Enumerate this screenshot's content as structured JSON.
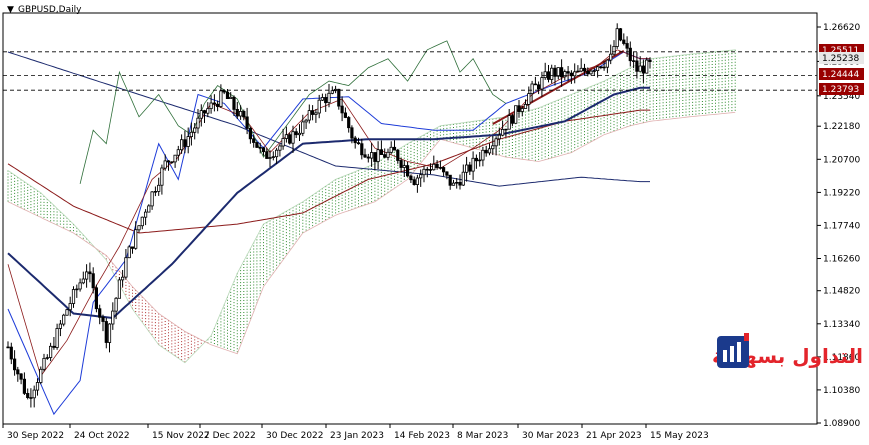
{
  "title": "GBPUSD,Daily",
  "colors": {
    "background": "#ffffff",
    "candle": "#000000",
    "ma_navy": "#1c2a6e",
    "ma_maroon": "#8b1a1a",
    "kijun_blue": "#1e3cd8",
    "chikou_green": "#2f6f3a",
    "cloud_green": "#2e8b2e",
    "cloud_red": "#b03030",
    "hline": "#000000",
    "label_bg": "#990000",
    "label_grey_bg": "#e8e8e8",
    "trendline": "#8b1a1a",
    "logo_red": "#e3242b",
    "logo_blue": "#1b3a8c"
  },
  "price_labels": [
    {
      "value": "1.25511",
      "style": "dark"
    },
    {
      "value": "1.25238",
      "style": "grey"
    },
    {
      "value": "1.24444",
      "style": "dark"
    },
    {
      "value": "1.23793",
      "style": "dark"
    }
  ],
  "logo": {
    "text": "التداول بسهولة",
    "icon": "bar-chart-logo-icon"
  },
  "chart_data": {
    "type": "candlestick",
    "symbol": "GBPUSD",
    "timeframe": "Daily",
    "x_ticks": [
      "30 Sep 2022",
      "24 Oct 2022",
      "15 Nov 2022",
      "7 Dec 2022",
      "30 Dec 2022",
      "23 Jan 2023",
      "14 Feb 2023",
      "8 Mar 2023",
      "30 Mar 2023",
      "21 Apr 2023",
      "15 May 2023"
    ],
    "y_ticks": [
      1.2662,
      1.2508,
      1.2354,
      1.2218,
      1.207,
      1.1922,
      1.1774,
      1.1626,
      1.1482,
      1.1334,
      1.1186,
      1.1038,
      1.089
    ],
    "y_tick_labels": [
      "1.26620",
      "1.25080",
      "1.23540",
      "1.22180",
      "1.20700",
      "1.19220",
      "1.17740",
      "1.16260",
      "1.14820",
      "1.13340",
      "1.11860",
      "1.10380",
      "1.08900"
    ],
    "ylim": [
      1.089,
      1.2662
    ],
    "hlines": [
      1.25511,
      1.24444,
      1.23793
    ],
    "close_anchors": [
      [
        0,
        1.123
      ],
      [
        6,
        1.1
      ],
      [
        12,
        1.118
      ],
      [
        18,
        1.14
      ],
      [
        24,
        1.158
      ],
      [
        30,
        1.128
      ],
      [
        36,
        1.162
      ],
      [
        42,
        1.185
      ],
      [
        48,
        1.205
      ],
      [
        54,
        1.215
      ],
      [
        60,
        1.228
      ],
      [
        66,
        1.236
      ],
      [
        72,
        1.224
      ],
      [
        78,
        1.208
      ],
      [
        84,
        1.214
      ],
      [
        90,
        1.222
      ],
      [
        96,
        1.234
      ],
      [
        100,
        1.236
      ],
      [
        106,
        1.214
      ],
      [
        112,
        1.208
      ],
      [
        118,
        1.21
      ],
      [
        124,
        1.198
      ],
      [
        130,
        1.205
      ],
      [
        136,
        1.195
      ],
      [
        142,
        1.205
      ],
      [
        148,
        1.216
      ],
      [
        154,
        1.226
      ],
      [
        160,
        1.238
      ],
      [
        166,
        1.246
      ],
      [
        172,
        1.244
      ],
      [
        178,
        1.248
      ],
      [
        184,
        1.252
      ],
      [
        186,
        1.263
      ],
      [
        188,
        1.258
      ],
      [
        190,
        1.252
      ],
      [
        192,
        1.247
      ],
      [
        196,
        1.249
      ]
    ],
    "ma_navy_anchors": [
      [
        0,
        1.165
      ],
      [
        20,
        1.138
      ],
      [
        32,
        1.136
      ],
      [
        50,
        1.16
      ],
      [
        70,
        1.192
      ],
      [
        90,
        1.214
      ],
      [
        110,
        1.216
      ],
      [
        130,
        1.216
      ],
      [
        150,
        1.218
      ],
      [
        170,
        1.224
      ],
      [
        185,
        1.236
      ],
      [
        193,
        1.239
      ]
    ],
    "ma_long_anchors": [
      [
        0,
        1.255
      ],
      [
        40,
        1.236
      ],
      [
        70,
        1.222
      ],
      [
        100,
        1.204
      ],
      [
        130,
        1.2
      ],
      [
        150,
        1.195
      ],
      [
        175,
        1.199
      ],
      [
        193,
        1.197
      ]
    ],
    "ma_maroon_anchors": [
      [
        0,
        1.205
      ],
      [
        20,
        1.186
      ],
      [
        40,
        1.174
      ],
      [
        70,
        1.178
      ],
      [
        90,
        1.183
      ],
      [
        110,
        1.198
      ],
      [
        130,
        1.205
      ],
      [
        150,
        1.216
      ],
      [
        170,
        1.224
      ],
      [
        193,
        1.229
      ]
    ],
    "kijun_anchors": [
      [
        0,
        1.14
      ],
      [
        14,
        1.093
      ],
      [
        22,
        1.108
      ],
      [
        26,
        1.143
      ],
      [
        36,
        1.162
      ],
      [
        46,
        1.214
      ],
      [
        52,
        1.198
      ],
      [
        58,
        1.236
      ],
      [
        66,
        1.232
      ],
      [
        78,
        1.212
      ],
      [
        90,
        1.234
      ],
      [
        104,
        1.235
      ],
      [
        114,
        1.223
      ],
      [
        130,
        1.22
      ],
      [
        142,
        1.22
      ],
      [
        152,
        1.232
      ],
      [
        166,
        1.24
      ],
      [
        178,
        1.246
      ],
      [
        188,
        1.255
      ],
      [
        193,
        1.252
      ]
    ],
    "tenkan_anchors": [
      [
        0,
        1.16
      ],
      [
        10,
        1.11
      ],
      [
        18,
        1.126
      ],
      [
        26,
        1.148
      ],
      [
        34,
        1.168
      ],
      [
        44,
        1.198
      ],
      [
        52,
        1.208
      ],
      [
        62,
        1.232
      ],
      [
        72,
        1.226
      ],
      [
        80,
        1.21
      ],
      [
        92,
        1.228
      ],
      [
        102,
        1.234
      ],
      [
        112,
        1.212
      ],
      [
        122,
        1.206
      ],
      [
        132,
        1.203
      ],
      [
        142,
        1.212
      ],
      [
        150,
        1.22
      ],
      [
        160,
        1.236
      ],
      [
        170,
        1.244
      ],
      [
        180,
        1.249
      ],
      [
        186,
        1.256
      ],
      [
        193,
        1.252
      ]
    ],
    "chikou_anchors": [
      [
        22,
        1.196
      ],
      [
        26,
        1.22
      ],
      [
        30,
        1.214
      ],
      [
        34,
        1.246
      ],
      [
        40,
        1.226
      ],
      [
        46,
        1.236
      ],
      [
        52,
        1.222
      ],
      [
        56,
        1.218
      ],
      [
        60,
        1.232
      ],
      [
        64,
        1.24
      ],
      [
        70,
        1.234
      ],
      [
        78,
        1.208
      ],
      [
        86,
        1.224
      ],
      [
        92,
        1.236
      ],
      [
        98,
        1.242
      ],
      [
        104,
        1.24
      ],
      [
        110,
        1.248
      ],
      [
        116,
        1.252
      ],
      [
        122,
        1.242
      ],
      [
        128,
        1.256
      ],
      [
        134,
        1.26
      ],
      [
        138,
        1.246
      ],
      [
        142,
        1.252
      ],
      [
        148,
        1.236
      ],
      [
        152,
        1.232
      ]
    ],
    "cloud_a_anchors": [
      [
        0,
        1.202
      ],
      [
        10,
        1.192
      ],
      [
        20,
        1.178
      ],
      [
        30,
        1.162
      ],
      [
        38,
        1.14
      ],
      [
        46,
        1.124
      ],
      [
        54,
        1.116
      ],
      [
        62,
        1.128
      ],
      [
        70,
        1.156
      ],
      [
        78,
        1.178
      ],
      [
        90,
        1.188
      ],
      [
        100,
        1.198
      ],
      [
        112,
        1.205
      ],
      [
        122,
        1.214
      ],
      [
        132,
        1.222
      ],
      [
        142,
        1.224
      ],
      [
        152,
        1.226
      ],
      [
        162,
        1.23
      ],
      [
        172,
        1.236
      ],
      [
        182,
        1.242
      ],
      [
        190,
        1.248
      ],
      [
        196,
        1.252
      ],
      [
        208,
        1.254
      ],
      [
        222,
        1.256
      ]
    ],
    "cloud_b_anchors": [
      [
        0,
        1.188
      ],
      [
        10,
        1.181
      ],
      [
        20,
        1.174
      ],
      [
        30,
        1.164
      ],
      [
        38,
        1.15
      ],
      [
        46,
        1.138
      ],
      [
        54,
        1.13
      ],
      [
        62,
        1.124
      ],
      [
        70,
        1.12
      ],
      [
        78,
        1.15
      ],
      [
        90,
        1.174
      ],
      [
        100,
        1.182
      ],
      [
        112,
        1.188
      ],
      [
        122,
        1.198
      ],
      [
        132,
        1.216
      ],
      [
        142,
        1.212
      ],
      [
        152,
        1.208
      ],
      [
        162,
        1.206
      ],
      [
        172,
        1.21
      ],
      [
        182,
        1.218
      ],
      [
        190,
        1.222
      ],
      [
        196,
        1.224
      ],
      [
        208,
        1.226
      ],
      [
        222,
        1.228
      ]
    ],
    "trendline": [
      [
        148,
        1.2228
      ],
      [
        188,
        1.2555
      ]
    ],
    "bars_count": 197
  }
}
